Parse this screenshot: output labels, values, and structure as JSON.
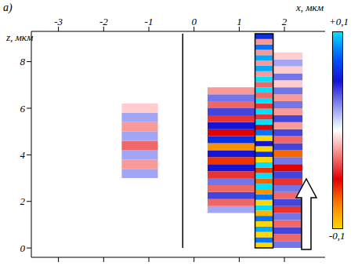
{
  "chart_data": {
    "type": "heatmap",
    "title": "а)",
    "x_label": "x, мкм",
    "y_label": "z, мкм",
    "xlim": [
      -3.6,
      2.9
    ],
    "ylim": [
      -0.4,
      9.3
    ],
    "xticks": [
      -3,
      -2,
      -1,
      0,
      1,
      2
    ],
    "yticks": [
      0,
      2,
      4,
      6,
      8
    ],
    "boundaries_x": [
      -0.25
    ],
    "waveguide": {
      "x": [
        1.35,
        1.75
      ],
      "z": [
        0,
        9.2
      ]
    },
    "cells": [
      [
        1.35,
        1.75,
        0,
        0.23,
        -0.1
      ],
      [
        1.35,
        1.75,
        0.23,
        0.46,
        0.08
      ],
      [
        1.35,
        1.75,
        0.46,
        0.69,
        -0.1
      ],
      [
        1.35,
        1.75,
        0.69,
        0.92,
        0.09
      ],
      [
        1.35,
        1.75,
        0.92,
        1.15,
        -0.1
      ],
      [
        1.35,
        1.75,
        1.15,
        1.38,
        0.08
      ],
      [
        1.35,
        1.75,
        1.38,
        1.61,
        -0.09
      ],
      [
        1.35,
        1.75,
        1.61,
        1.84,
        0.1
      ],
      [
        1.35,
        1.75,
        1.84,
        2.07,
        -0.1
      ],
      [
        1.35,
        1.75,
        2.07,
        2.3,
        0.08
      ],
      [
        1.35,
        1.75,
        2.3,
        2.53,
        -0.08
      ],
      [
        1.35,
        1.75,
        2.53,
        2.76,
        0.1
      ],
      [
        1.35,
        1.75,
        2.76,
        2.99,
        -0.07
      ],
      [
        1.35,
        1.75,
        2.99,
        3.22,
        0.1
      ],
      [
        1.35,
        1.75,
        3.22,
        3.45,
        -0.06
      ],
      [
        1.35,
        1.75,
        3.45,
        3.68,
        0.1
      ],
      [
        1.35,
        1.75,
        3.68,
        3.91,
        -0.1
      ],
      [
        1.35,
        1.75,
        3.91,
        4.14,
        0.06
      ],
      [
        1.35,
        1.75,
        4.14,
        4.37,
        -0.1
      ],
      [
        1.35,
        1.75,
        4.37,
        4.6,
        0.05
      ],
      [
        1.35,
        1.75,
        4.6,
        4.83,
        -0.1
      ],
      [
        1.35,
        1.75,
        4.83,
        5.06,
        0.08
      ],
      [
        1.35,
        1.75,
        5.06,
        5.29,
        -0.05
      ],
      [
        1.35,
        1.75,
        5.29,
        5.52,
        0.1
      ],
      [
        1.35,
        1.75,
        5.52,
        5.75,
        -0.04
      ],
      [
        1.35,
        1.75,
        5.75,
        5.98,
        0.1
      ],
      [
        1.35,
        1.75,
        5.98,
        6.21,
        -0.04
      ],
      [
        1.35,
        1.75,
        6.21,
        6.44,
        0.1
      ],
      [
        1.35,
        1.75,
        6.44,
        6.67,
        -0.03
      ],
      [
        1.35,
        1.75,
        6.67,
        6.9,
        0.1
      ],
      [
        1.35,
        1.75,
        6.9,
        7.13,
        -0.03
      ],
      [
        1.35,
        1.75,
        7.13,
        7.36,
        0.1
      ],
      [
        1.35,
        1.75,
        7.36,
        7.59,
        -0.02
      ],
      [
        1.35,
        1.75,
        7.59,
        7.82,
        0.09
      ],
      [
        1.35,
        1.75,
        7.82,
        8.05,
        -0.02
      ],
      [
        1.35,
        1.75,
        8.05,
        8.28,
        0.09
      ],
      [
        1.35,
        1.75,
        8.28,
        8.51,
        -0.02
      ],
      [
        1.35,
        1.75,
        8.51,
        8.74,
        0.08
      ],
      [
        1.35,
        1.75,
        8.74,
        8.97,
        -0.02
      ],
      [
        1.35,
        1.75,
        8.97,
        9.2,
        0.06
      ],
      [
        0.3,
        1.35,
        1.5,
        1.8,
        0.02
      ],
      [
        0.3,
        1.35,
        1.8,
        2.1,
        -0.03
      ],
      [
        0.3,
        1.35,
        2.1,
        2.4,
        0.04
      ],
      [
        0.3,
        1.35,
        2.4,
        2.7,
        -0.03
      ],
      [
        0.3,
        1.35,
        2.7,
        3.0,
        0.03
      ],
      [
        0.3,
        1.35,
        3.0,
        3.3,
        -0.04
      ],
      [
        0.3,
        1.35,
        3.3,
        3.6,
        0.05
      ],
      [
        0.3,
        1.35,
        3.6,
        3.9,
        -0.06
      ],
      [
        0.3,
        1.35,
        3.9,
        4.2,
        0.05
      ],
      [
        0.3,
        1.35,
        4.2,
        4.5,
        -0.08
      ],
      [
        0.3,
        1.35,
        4.5,
        4.8,
        0.06
      ],
      [
        0.3,
        1.35,
        4.8,
        5.1,
        -0.05
      ],
      [
        0.3,
        1.35,
        5.1,
        5.4,
        0.05
      ],
      [
        0.3,
        1.35,
        5.4,
        5.7,
        -0.04
      ],
      [
        0.3,
        1.35,
        5.7,
        6.0,
        0.04
      ],
      [
        0.3,
        1.35,
        6.0,
        6.3,
        -0.03
      ],
      [
        0.3,
        1.35,
        6.3,
        6.6,
        0.03
      ],
      [
        0.3,
        1.35,
        6.6,
        6.9,
        -0.02
      ],
      [
        1.75,
        2.4,
        0,
        0.3,
        0.03
      ],
      [
        1.75,
        2.4,
        0.3,
        0.6,
        -0.03
      ],
      [
        1.75,
        2.4,
        0.6,
        0.9,
        0.04
      ],
      [
        1.75,
        2.4,
        0.9,
        1.2,
        -0.03
      ],
      [
        1.75,
        2.4,
        1.2,
        1.5,
        0.03
      ],
      [
        1.75,
        2.4,
        1.5,
        1.8,
        -0.04
      ],
      [
        1.75,
        2.4,
        1.8,
        2.1,
        0.04
      ],
      [
        1.75,
        2.4,
        2.1,
        2.4,
        -0.03
      ],
      [
        1.75,
        2.4,
        2.4,
        2.7,
        0.03
      ],
      [
        1.75,
        2.4,
        2.7,
        3.0,
        -0.04
      ],
      [
        1.75,
        2.4,
        3.0,
        3.3,
        0.04
      ],
      [
        1.75,
        2.4,
        3.3,
        3.6,
        -0.05
      ],
      [
        1.75,
        2.4,
        3.6,
        3.9,
        0.03
      ],
      [
        1.75,
        2.4,
        3.9,
        4.2,
        -0.07
      ],
      [
        1.75,
        2.4,
        4.2,
        4.5,
        0.04
      ],
      [
        1.75,
        2.4,
        4.5,
        4.8,
        -0.03
      ],
      [
        1.75,
        2.4,
        4.8,
        5.1,
        0.04
      ],
      [
        1.75,
        2.4,
        5.1,
        5.4,
        -0.02
      ],
      [
        1.75,
        2.4,
        5.4,
        5.7,
        0.04
      ],
      [
        1.75,
        2.4,
        5.7,
        6.0,
        -0.02
      ],
      [
        1.75,
        2.4,
        6.0,
        6.3,
        0.03
      ],
      [
        1.75,
        2.4,
        6.3,
        6.6,
        -0.02
      ],
      [
        1.75,
        2.4,
        6.6,
        6.9,
        0.03
      ],
      [
        1.75,
        2.4,
        6.9,
        7.2,
        -0.01
      ],
      [
        1.75,
        2.4,
        7.2,
        7.5,
        0.03
      ],
      [
        1.75,
        2.4,
        7.5,
        7.8,
        -0.01
      ],
      [
        1.75,
        2.4,
        7.8,
        8.1,
        0.02
      ],
      [
        1.75,
        2.4,
        8.1,
        8.4,
        -0.01
      ],
      [
        -1.6,
        -0.8,
        3.0,
        3.4,
        0.02
      ],
      [
        -1.6,
        -0.8,
        3.4,
        3.8,
        -0.02
      ],
      [
        -1.6,
        -0.8,
        3.8,
        4.2,
        0.02
      ],
      [
        -1.6,
        -0.8,
        4.2,
        4.6,
        -0.03
      ],
      [
        -1.6,
        -0.8,
        4.6,
        5.0,
        0.02
      ],
      [
        -1.6,
        -0.8,
        5.0,
        5.4,
        -0.02
      ],
      [
        -1.6,
        -0.8,
        5.4,
        5.8,
        0.02
      ],
      [
        -1.6,
        -0.8,
        5.8,
        6.2,
        -0.01
      ]
    ],
    "colorbar": {
      "range": [
        -0.1,
        0.1
      ],
      "ticks": [
        {
          "value": 0.1,
          "label": "+0,1"
        },
        {
          "value": -0.1,
          "label": "-0,1"
        }
      ]
    }
  }
}
